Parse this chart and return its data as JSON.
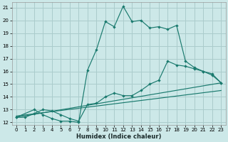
{
  "xlabel": "Humidex (Indice chaleur)",
  "bg_color": "#cce8e8",
  "grid_color": "#aacccc",
  "line_color": "#1a7a6e",
  "xlim_min": -0.5,
  "xlim_max": 23.5,
  "ylim_min": 11.8,
  "ylim_max": 21.4,
  "xticks": [
    0,
    1,
    2,
    3,
    4,
    5,
    6,
    7,
    8,
    9,
    10,
    11,
    12,
    13,
    14,
    15,
    16,
    17,
    18,
    19,
    20,
    21,
    22,
    23
  ],
  "yticks": [
    12,
    13,
    14,
    15,
    16,
    17,
    18,
    19,
    20,
    21
  ],
  "line1_x": [
    0,
    2,
    3,
    4,
    5,
    6,
    7,
    8,
    9,
    10,
    11,
    12,
    13,
    14,
    15,
    16,
    17,
    18,
    19,
    20,
    21,
    22,
    23
  ],
  "line1_y": [
    12.4,
    13.0,
    12.6,
    12.3,
    12.1,
    12.1,
    12.0,
    16.1,
    17.7,
    19.9,
    19.5,
    21.1,
    19.9,
    20.0,
    19.4,
    19.5,
    19.3,
    19.6,
    16.8,
    16.3,
    16.0,
    15.8,
    15.1
  ],
  "line2_x": [
    0,
    1,
    2,
    3,
    4,
    5,
    6,
    7,
    8,
    9,
    10,
    11,
    12,
    13,
    14,
    15,
    16,
    17,
    18,
    19,
    20,
    21,
    22,
    23
  ],
  "line2_y": [
    12.4,
    12.4,
    12.7,
    13.0,
    12.9,
    12.6,
    12.3,
    12.1,
    13.4,
    13.5,
    14.0,
    14.3,
    14.1,
    14.1,
    14.5,
    15.0,
    15.3,
    16.8,
    16.5,
    16.4,
    16.2,
    16.0,
    15.7,
    15.1
  ],
  "line3_x": [
    0,
    23
  ],
  "line3_y": [
    12.4,
    15.1
  ],
  "line4_x": [
    0,
    23
  ],
  "line4_y": [
    12.5,
    14.5
  ]
}
